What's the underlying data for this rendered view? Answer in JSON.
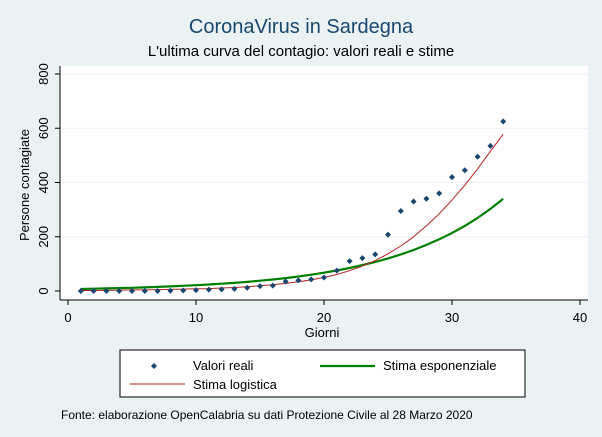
{
  "chart_data": {
    "type": "scatter",
    "title": "CoronaVirus in Sardegna",
    "subtitle": "L'ultima curva del contagio: valori reali e stime",
    "xlabel": "Giorni",
    "ylabel": "Persone contagiate",
    "xlim": [
      0,
      40
    ],
    "ylim": [
      0,
      800
    ],
    "xticks": [
      0,
      10,
      20,
      30,
      40
    ],
    "yticks": [
      0,
      200,
      400,
      600,
      800
    ],
    "grid": true,
    "legend_position": "bottom",
    "series": [
      {
        "name": "Valori reali",
        "kind": "scatter",
        "color": "#1a476f",
        "x": [
          1,
          2,
          3,
          4,
          5,
          6,
          7,
          8,
          9,
          10,
          11,
          12,
          13,
          14,
          15,
          16,
          17,
          18,
          19,
          20,
          21,
          22,
          23,
          24,
          25,
          26,
          27,
          28,
          29,
          30,
          31,
          32,
          33,
          34
        ],
        "y": [
          0,
          0,
          0,
          0,
          0,
          0,
          0,
          1,
          2,
          3,
          5,
          6,
          8,
          12,
          18,
          20,
          35,
          39,
          43,
          50,
          75,
          110,
          121,
          135,
          208,
          295,
          330,
          340,
          360,
          420,
          445,
          495,
          535,
          625
        ]
      },
      {
        "name": "Stima esponenziale",
        "kind": "line",
        "color": "#008000",
        "x": [
          1,
          2,
          3,
          4,
          5,
          6,
          7,
          8,
          9,
          10,
          11,
          12,
          13,
          14,
          15,
          16,
          17,
          18,
          19,
          20,
          21,
          22,
          23,
          24,
          25,
          26,
          27,
          28,
          29,
          30,
          31,
          32,
          33,
          34
        ],
        "y": [
          7.5,
          8.4,
          9.5,
          10.6,
          11.9,
          13.4,
          15.0,
          16.9,
          19,
          21.2,
          23.9,
          26.8,
          30,
          33.7,
          37.8,
          42.5,
          47.7,
          53.5,
          60,
          67.4,
          75.7,
          84.9,
          95.3,
          107,
          120,
          134.8,
          151.3,
          169.8,
          190.6,
          213.9,
          240.1,
          269.5,
          302.5,
          339.5
        ]
      },
      {
        "name": "Stima logistica",
        "kind": "line",
        "color": "#b22222",
        "x": [
          1,
          2,
          3,
          4,
          5,
          6,
          7,
          8,
          9,
          10,
          11,
          12,
          13,
          14,
          15,
          16,
          17,
          18,
          19,
          20,
          21,
          22,
          23,
          24,
          25,
          26,
          27,
          28,
          29,
          30,
          31,
          32,
          33,
          34
        ],
        "y": [
          2,
          2,
          3,
          3,
          4,
          4,
          5,
          6,
          7,
          8,
          9,
          11,
          13,
          16,
          19,
          23,
          28,
          34,
          41,
          50,
          61,
          75,
          92,
          112,
          137,
          166,
          200,
          240,
          285,
          335,
          390,
          450,
          515,
          578
        ]
      }
    ],
    "note": "Fonte: elaborazione OpenCalabria su dati Protezione Civile al 28 Marzo 2020"
  }
}
